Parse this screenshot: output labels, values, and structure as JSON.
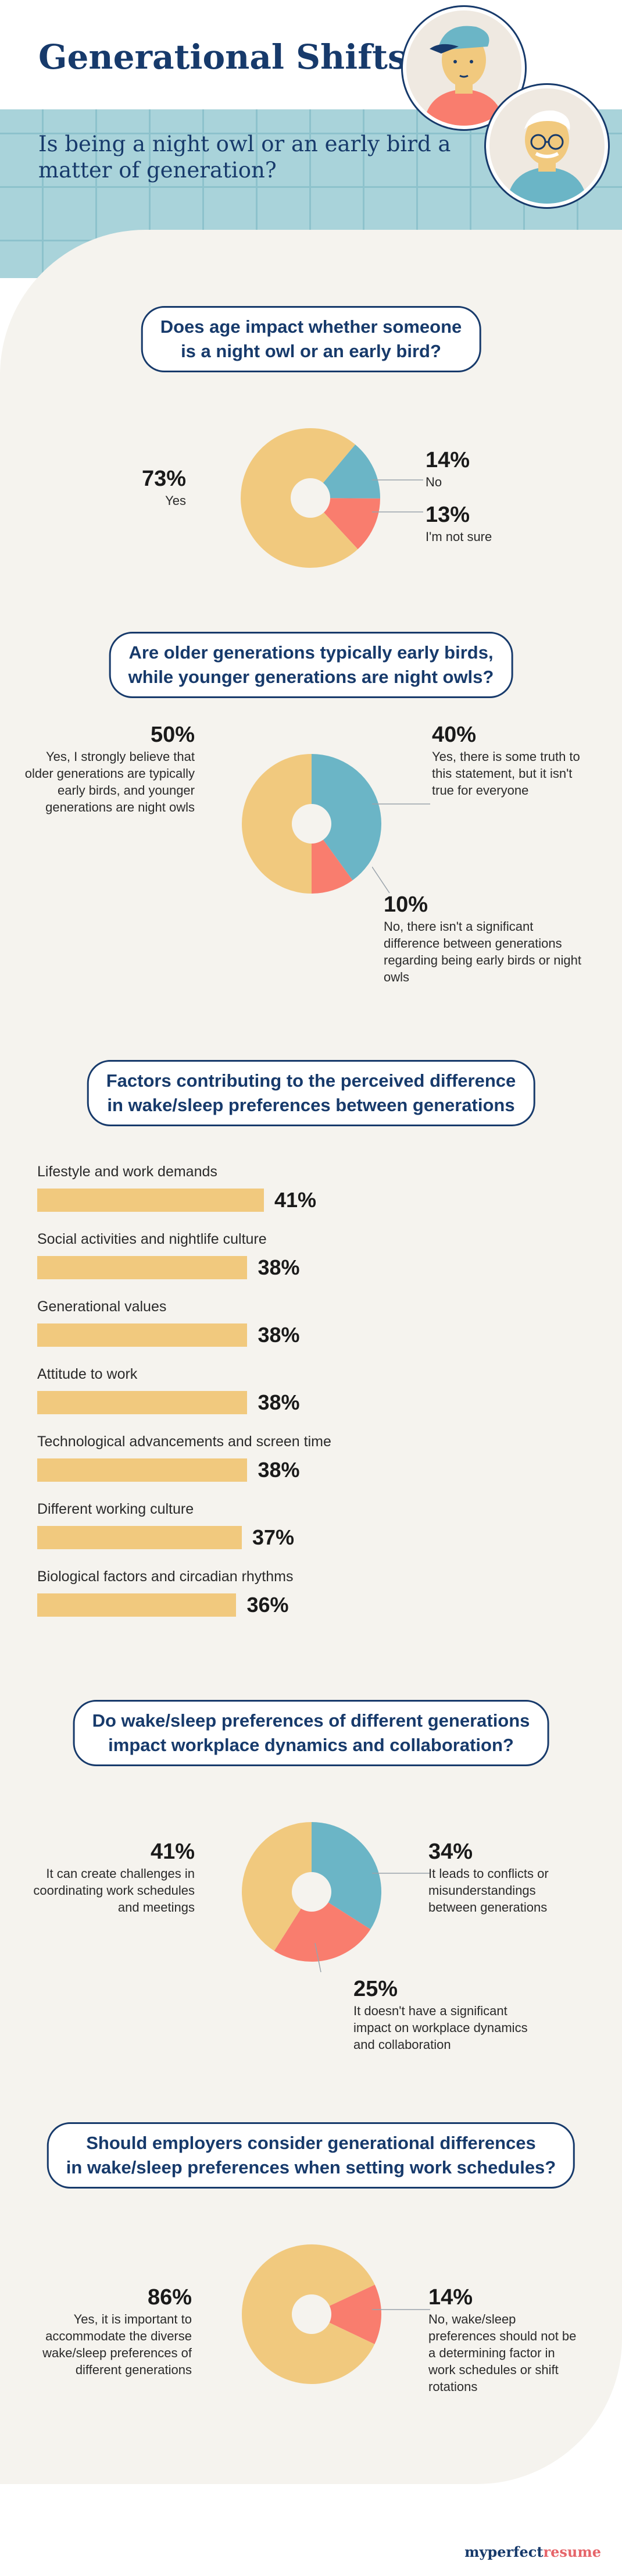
{
  "header": {
    "title": "Generational Shifts",
    "subtitle": "Is being a night owl or an early bird a matter of generation?"
  },
  "colors": {
    "yellow": "#f1c97e",
    "teal": "#6bb5c6",
    "coral": "#f97d6e",
    "navy": "#173a6b",
    "cream": "#f5f3ee"
  },
  "chart_data": [
    {
      "type": "pie",
      "title": "Does age impact whether someone is a night owl or an early bird?",
      "slices": [
        {
          "label": "Yes",
          "value": 73
        },
        {
          "label": "No",
          "value": 14
        },
        {
          "label": "I'm not sure",
          "value": 13
        }
      ]
    },
    {
      "type": "pie",
      "title": "Are older generations typically early birds, while younger generations are night owls?",
      "slices": [
        {
          "label": "Yes, I strongly believe that older generations are typically early birds, and younger generations are night owls",
          "value": 50
        },
        {
          "label": "Yes, there is some truth to this statement, but it isn't true for everyone",
          "value": 40
        },
        {
          "label": "No, there isn't a significant difference between generations regarding being early birds or night owls",
          "value": 10
        }
      ]
    },
    {
      "type": "bar",
      "title": "Factors contributing to the perceived difference in wake/sleep preferences between generations",
      "categories": [
        "Lifestyle and work demands",
        "Social activities and nightlife culture",
        "Generational values",
        "Attitude to work",
        "Technological advancements and screen time",
        "Different working culture",
        "Biological factors and circadian rhythms"
      ],
      "values": [
        41,
        38,
        38,
        38,
        38,
        37,
        36
      ]
    },
    {
      "type": "pie",
      "title": "Do wake/sleep preferences of different generations impact workplace dynamics and collaboration?",
      "slices": [
        {
          "label": "It can create challenges in coordinating work schedules and meetings",
          "value": 41
        },
        {
          "label": "It leads to conflicts or misunderstandings between generations",
          "value": 34
        },
        {
          "label": "It doesn't have a significant impact on workplace dynamics and collaboration",
          "value": 25
        }
      ]
    },
    {
      "type": "pie",
      "title": "Should employers consider generational differences in wake/sleep preferences when setting work schedules?",
      "slices": [
        {
          "label": "Yes, it is important to accommodate the diverse wake/sleep preferences of different generations",
          "value": 86
        },
        {
          "label": "No, wake/sleep preferences should not be a determining factor in work schedules or shift rotations",
          "value": 14
        }
      ]
    }
  ],
  "text": {
    "q1_line1": "Does age impact whether someone",
    "q1_line2": "is a night owl or an early bird?",
    "q2_line1": "Are older generations typically early birds,",
    "q2_line2": "while younger generations are night owls?",
    "q3_line1": "Factors contributing to the perceived difference",
    "q3_line2": "in wake/sleep preferences between generations",
    "q4_line1": "Do wake/sleep preferences of different generations",
    "q4_line2": "impact workplace dynamics and collaboration?",
    "q5_line1": "Should employers consider generational differences",
    "q5_line2": "in wake/sleep preferences when setting work schedules?"
  },
  "footer": {
    "brand_part1": "myperfect",
    "brand_part2": "resume"
  }
}
